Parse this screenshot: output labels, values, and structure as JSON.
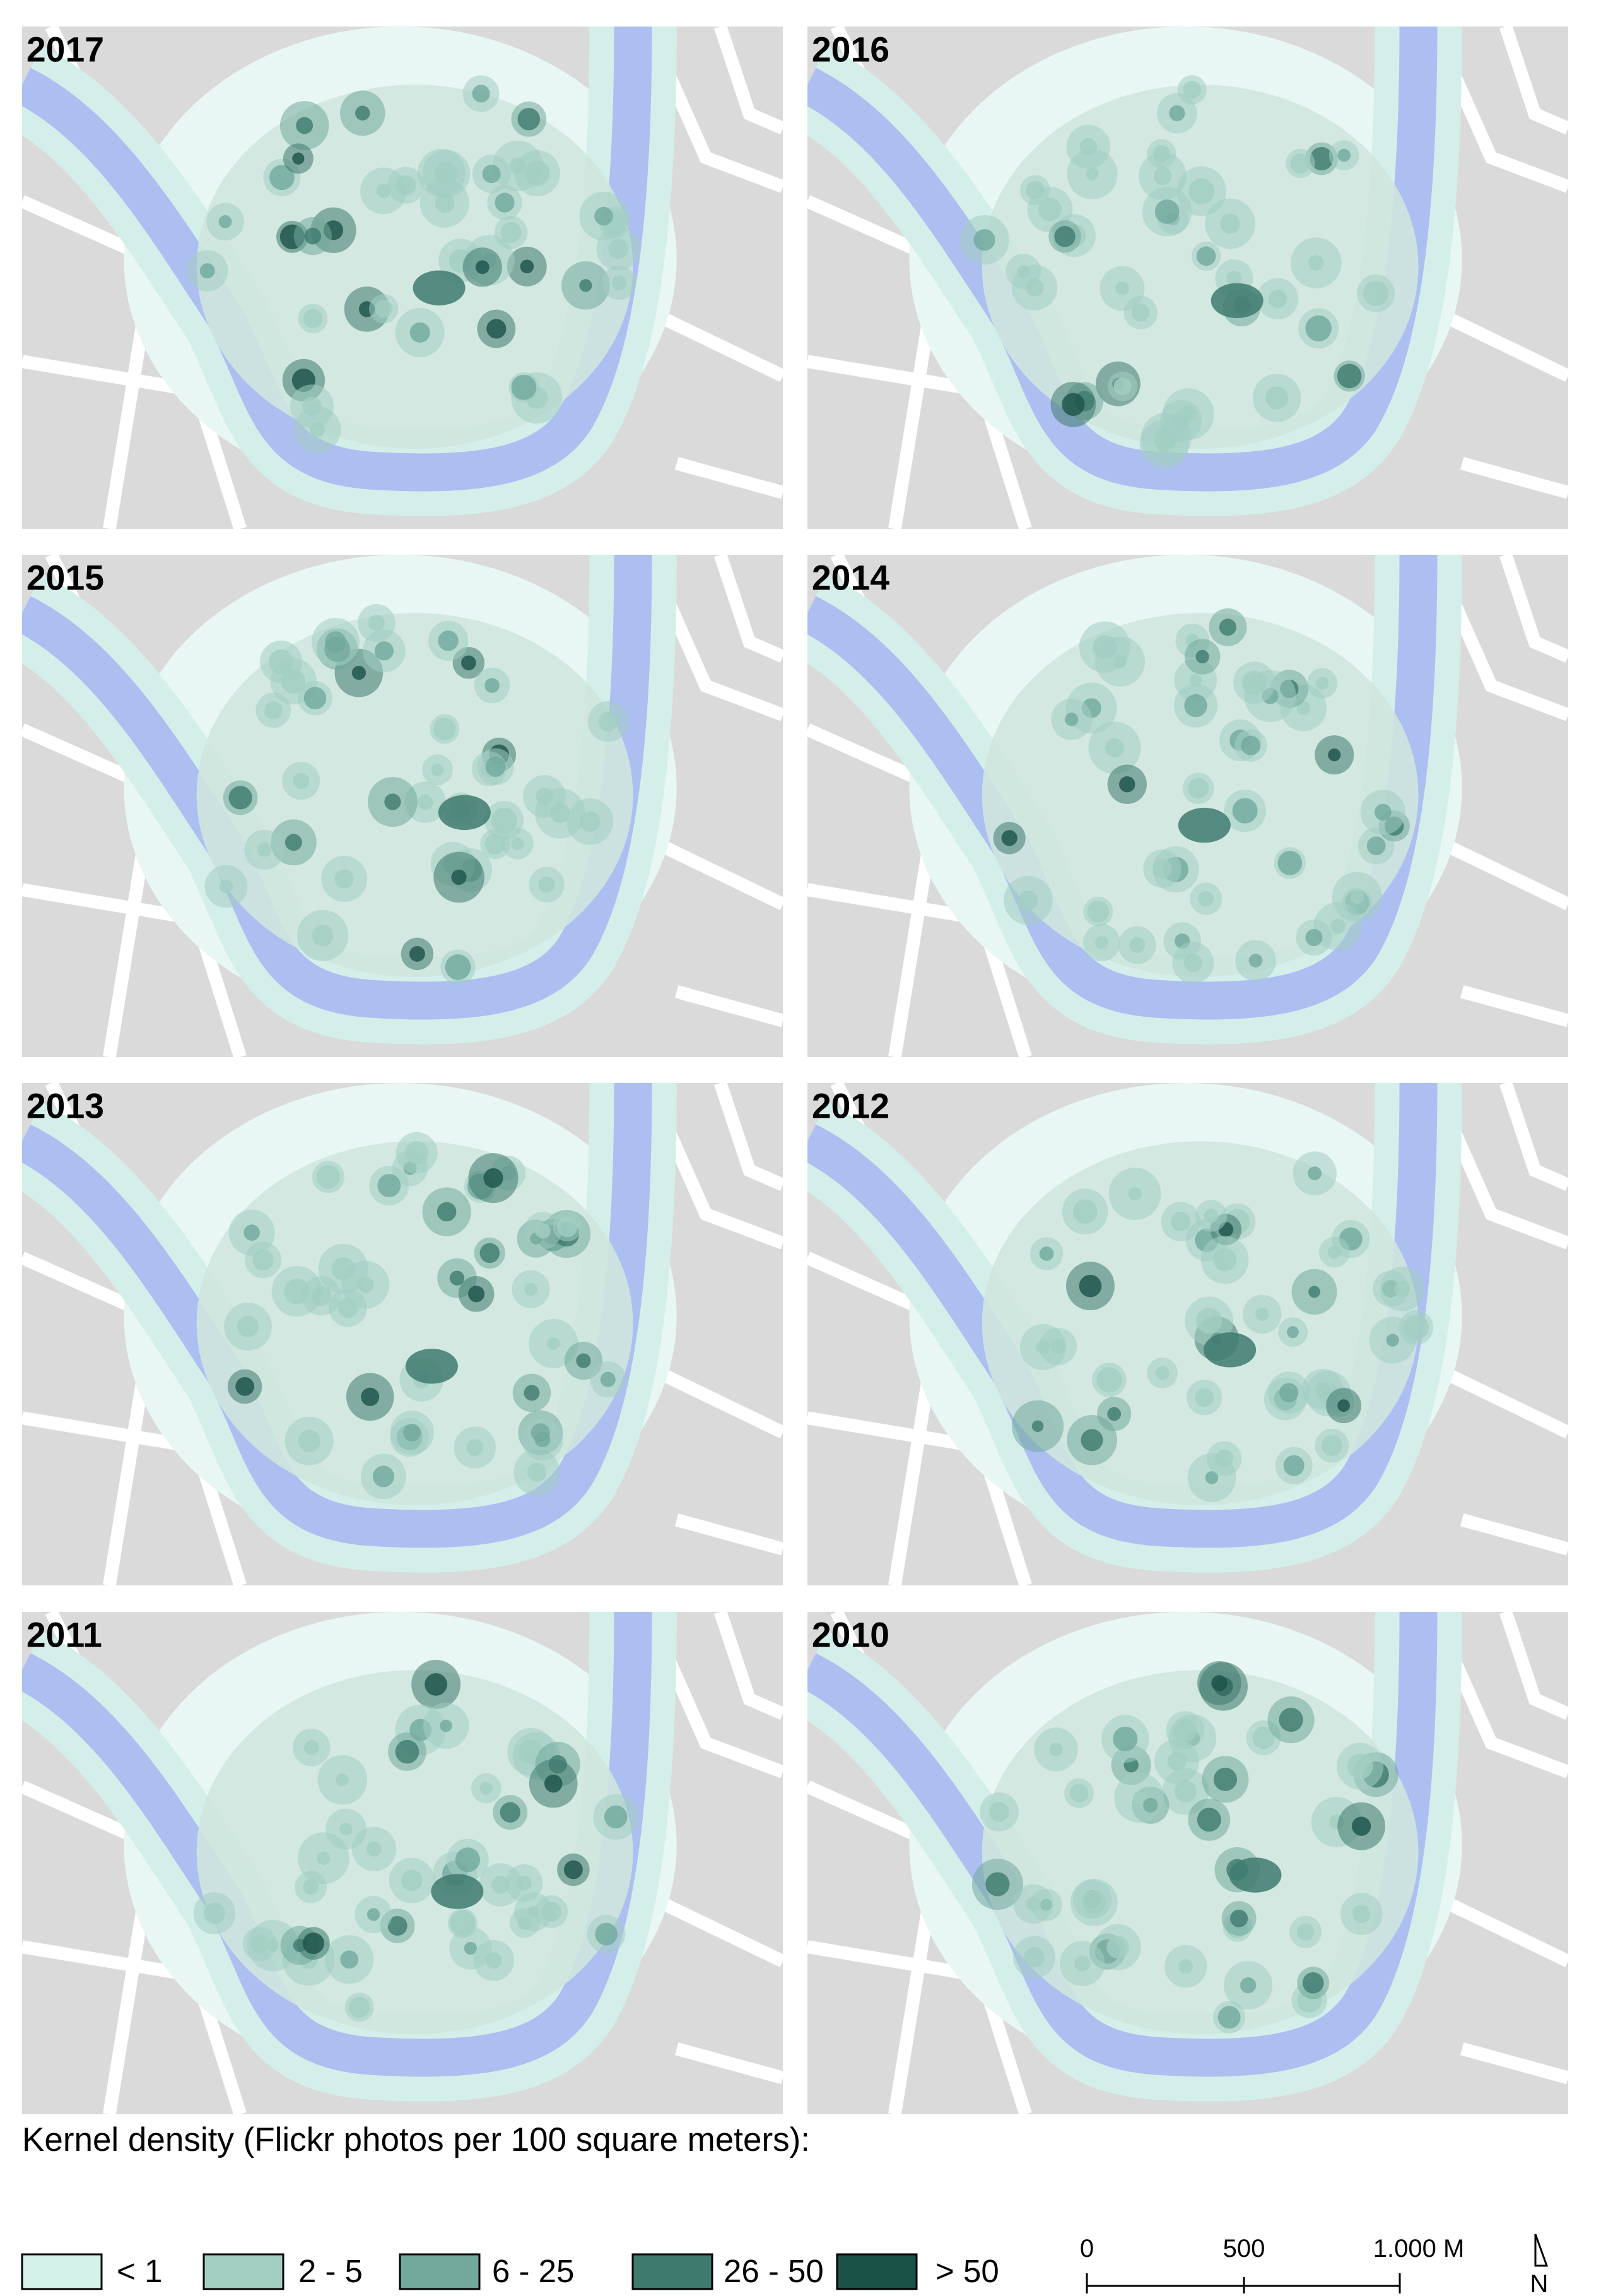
{
  "panels": [
    {
      "year": "2017"
    },
    {
      "year": "2016"
    },
    {
      "year": "2015"
    },
    {
      "year": "2014"
    },
    {
      "year": "2013"
    },
    {
      "year": "2012"
    },
    {
      "year": "2011"
    },
    {
      "year": "2010"
    }
  ],
  "legend": {
    "title": "Kernel density (Flickr photos per 100 square meters):",
    "items": [
      {
        "label": "< 1",
        "color": "#d4f1ea"
      },
      {
        "label": "2 - 5",
        "color": "#a3cec2"
      },
      {
        "label": "6 - 25",
        "color": "#72a99c"
      },
      {
        "label": "26 - 50",
        "color": "#3f7a6e"
      },
      {
        "label": "> 50",
        "color": "#1b5248"
      }
    ]
  },
  "scale_bar": {
    "labels": [
      "0",
      "500",
      "1.000 M"
    ]
  },
  "north_label": "N"
}
